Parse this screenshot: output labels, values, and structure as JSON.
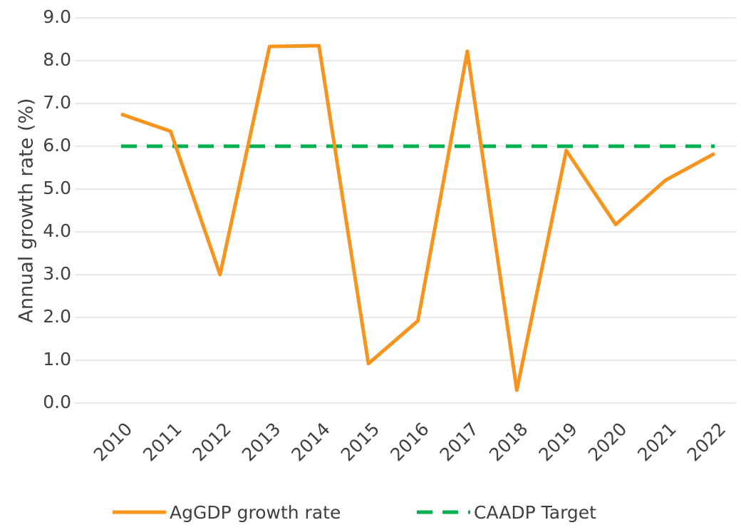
{
  "chart_data": {
    "type": "line",
    "y_label": "Annual growth rate (%)",
    "categories": [
      "2010",
      "2011",
      "2012",
      "2013",
      "2014",
      "2015",
      "2016",
      "2017",
      "2018",
      "2019",
      "2020",
      "2021",
      "2022"
    ],
    "series": [
      {
        "name": "AgGDP growth rate",
        "color": "#f7941d",
        "dashed": false,
        "values": [
          6.75,
          6.35,
          3.0,
          8.33,
          8.35,
          0.92,
          1.92,
          8.22,
          0.3,
          5.9,
          4.17,
          5.2,
          5.83
        ]
      },
      {
        "name": "CAADP Target",
        "color": "#00b050",
        "dashed": true,
        "values": [
          6,
          6,
          6,
          6,
          6,
          6,
          6,
          6,
          6,
          6,
          6,
          6,
          6
        ]
      }
    ],
    "ylim": [
      0,
      9
    ],
    "yticks": [
      {
        "value": 0,
        "label": "0.0"
      },
      {
        "value": 1,
        "label": "1.0"
      },
      {
        "value": 2,
        "label": "2.0"
      },
      {
        "value": 3,
        "label": "3.0"
      },
      {
        "value": 4,
        "label": "4.0"
      },
      {
        "value": 5,
        "label": "5.0"
      },
      {
        "value": 6,
        "label": "6.0"
      },
      {
        "value": 7,
        "label": "7.0"
      },
      {
        "value": 8,
        "label": "8.0"
      },
      {
        "value": 9,
        "label": "9.0"
      }
    ],
    "grid": true,
    "legend": "bottom"
  }
}
